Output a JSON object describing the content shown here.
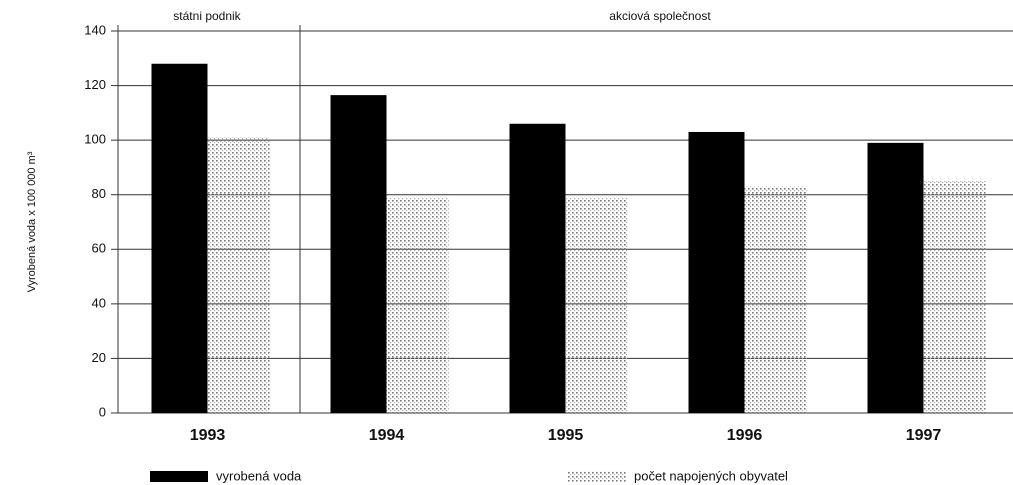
{
  "chart_data": {
    "type": "bar",
    "y_label": "Vyrobená voda x 100 000 m³",
    "annotations": [
      "státni podnik",
      "akciová společnost"
    ],
    "categories": [
      "1993",
      "1994",
      "1995",
      "1996",
      "1997"
    ],
    "series": [
      {
        "name": "vyrobená voda",
        "color": "#000000",
        "values": [
          128,
          116.5,
          106,
          103,
          99
        ]
      },
      {
        "name": "počet napojených obyvatel",
        "color": "#9a9a9a",
        "values": [
          101,
          79,
          79,
          83,
          85
        ]
      }
    ],
    "ylim": [
      0,
      140
    ],
    "yticks": [
      0,
      20,
      40,
      60,
      80,
      100,
      120,
      140
    ],
    "grid": true
  }
}
